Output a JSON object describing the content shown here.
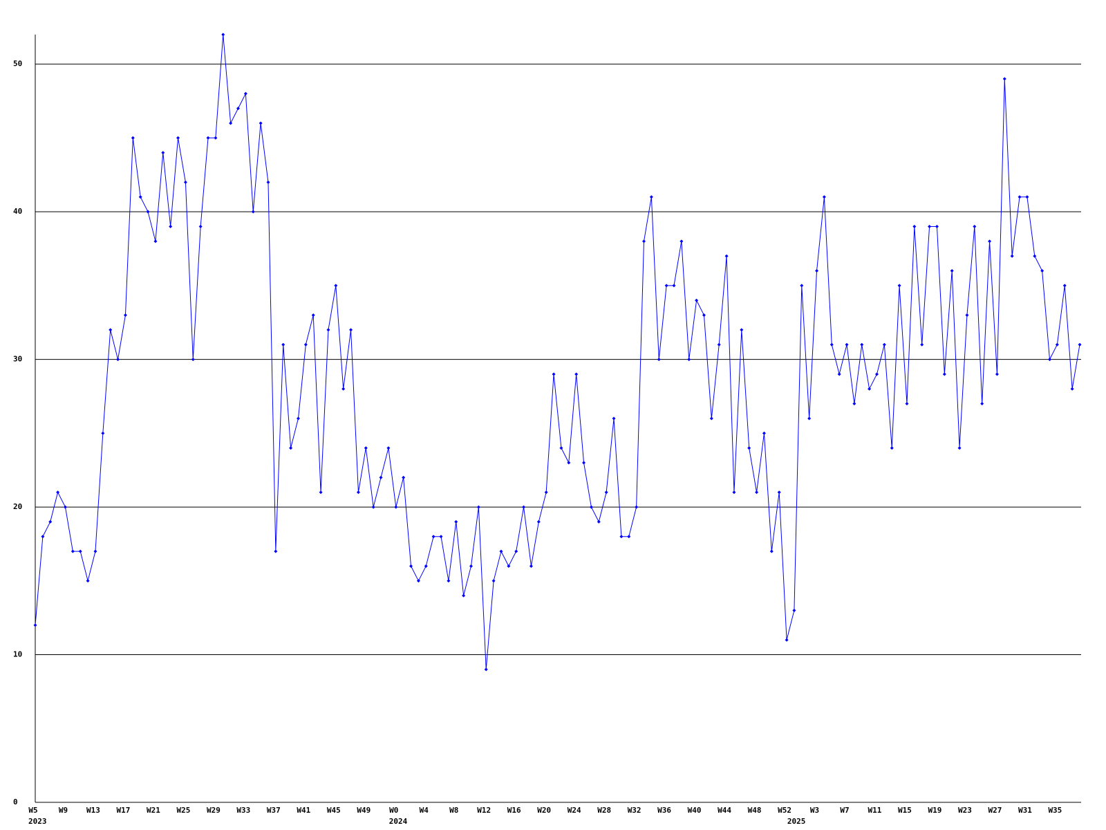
{
  "chart_data": {
    "type": "line",
    "categories": [
      "W5",
      null,
      null,
      null,
      "W9",
      null,
      null,
      null,
      "W13",
      null,
      null,
      null,
      "W17",
      null,
      null,
      null,
      "W21",
      null,
      null,
      null,
      "W25",
      null,
      null,
      null,
      "W29",
      null,
      null,
      null,
      "W33",
      null,
      null,
      null,
      "W37",
      null,
      null,
      null,
      "W41",
      null,
      null,
      null,
      "W45",
      null,
      null,
      null,
      "W49",
      null,
      null,
      null,
      "W0",
      null,
      null,
      null,
      "W4",
      null,
      null,
      null,
      "W8",
      null,
      null,
      null,
      "W12",
      null,
      null,
      null,
      "W16",
      null,
      null,
      null,
      "W20",
      null,
      null,
      null,
      "W24",
      null,
      null,
      null,
      "W28",
      null,
      null,
      null,
      "W32",
      null,
      null,
      null,
      "W36",
      null,
      null,
      null,
      "W40",
      null,
      null,
      null,
      "W44",
      null,
      null,
      null,
      "W48",
      null,
      null,
      null,
      "W52",
      null,
      null,
      null,
      "W3",
      null,
      null,
      null,
      "W7",
      null,
      null,
      null,
      "W11",
      null,
      null,
      null,
      "W15",
      null,
      null,
      null,
      "W19",
      null,
      null,
      null,
      "W23",
      null,
      null,
      null,
      "W27",
      null,
      null,
      null,
      "W31",
      null,
      null,
      null,
      "W35",
      null,
      null,
      null
    ],
    "year_labels": [
      "2023",
      null,
      null,
      null,
      null,
      null,
      null,
      null,
      null,
      null,
      null,
      null,
      null,
      null,
      null,
      null,
      null,
      null,
      null,
      null,
      null,
      null,
      null,
      null,
      null,
      null,
      null,
      null,
      null,
      null,
      null,
      null,
      null,
      null,
      null,
      null,
      null,
      null,
      null,
      null,
      null,
      null,
      null,
      null,
      null,
      null,
      null,
      null,
      "2024",
      null,
      null,
      null,
      null,
      null,
      null,
      null,
      null,
      null,
      null,
      null,
      null,
      null,
      null,
      null,
      null,
      null,
      null,
      null,
      null,
      null,
      null,
      null,
      null,
      null,
      null,
      null,
      null,
      null,
      null,
      null,
      null,
      null,
      null,
      null,
      null,
      null,
      null,
      null,
      null,
      null,
      null,
      null,
      null,
      null,
      null,
      null,
      null,
      null,
      null,
      null,
      null,
      "2025",
      null,
      null,
      null,
      null,
      null,
      null,
      null,
      null,
      null,
      null,
      null,
      null,
      null,
      null,
      null,
      null,
      null,
      null,
      null,
      null,
      null,
      null,
      null,
      null,
      null,
      null,
      null,
      null,
      null,
      null,
      null,
      null,
      null,
      null,
      null,
      null,
      null,
      null
    ],
    "values": [
      12,
      18,
      19,
      21,
      20,
      17,
      17,
      15,
      17,
      25,
      32,
      30,
      33,
      45,
      41,
      40,
      38,
      44,
      39,
      45,
      42,
      30,
      39,
      45,
      45,
      52,
      46,
      47,
      48,
      40,
      46,
      42,
      17,
      31,
      24,
      26,
      31,
      33,
      21,
      32,
      35,
      28,
      32,
      21,
      24,
      20,
      22,
      24,
      20,
      22,
      16,
      15,
      16,
      18,
      18,
      15,
      19,
      14,
      16,
      20,
      9,
      15,
      17,
      16,
      17,
      20,
      16,
      19,
      21,
      29,
      24,
      23,
      29,
      23,
      20,
      19,
      21,
      26,
      18,
      18,
      20,
      38,
      41,
      30,
      35,
      35,
      38,
      30,
      34,
      33,
      26,
      31,
      37,
      21,
      32,
      24,
      21,
      25,
      17,
      21,
      11,
      13,
      35,
      26,
      36,
      41,
      31,
      29,
      31,
      27,
      31,
      28,
      29,
      31,
      24,
      35,
      27,
      39,
      31,
      39,
      39,
      29,
      36,
      24,
      33,
      39,
      27,
      38,
      29,
      49,
      37,
      41,
      41,
      37,
      36,
      30,
      31,
      35,
      28,
      31
    ],
    "color": "#0000ff",
    "ylim": [
      0,
      52
    ],
    "yticks": [
      0,
      10,
      20,
      30,
      40,
      50
    ],
    "grid": true
  }
}
